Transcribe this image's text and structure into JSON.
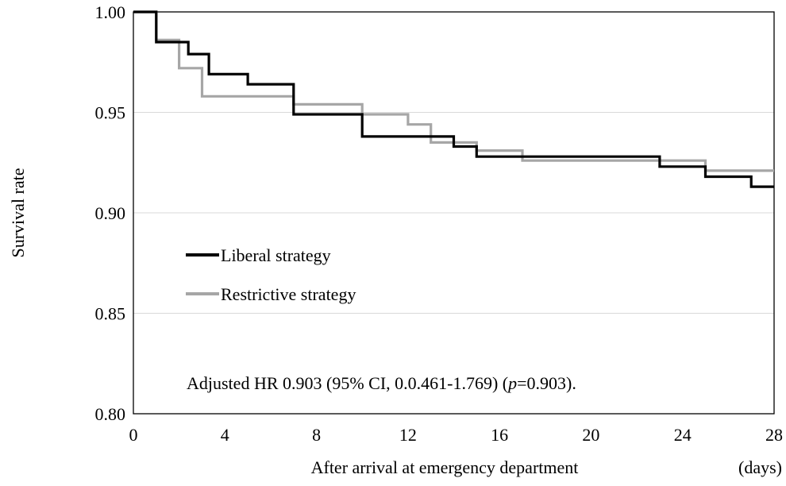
{
  "chart_data": {
    "type": "line",
    "step": true,
    "xlabel": "After arrival at emergency department",
    "xunit": "(days)",
    "ylabel": "Survival rate",
    "xlim": [
      0,
      28
    ],
    "ylim": [
      0.8,
      1.0
    ],
    "x_ticks": [
      0,
      4,
      8,
      12,
      16,
      20,
      24,
      28
    ],
    "y_ticks": [
      0.8,
      0.85,
      0.9,
      0.95,
      1.0
    ],
    "x_tick_labels": [
      "0",
      "4",
      "8",
      "12",
      "16",
      "20",
      "24",
      "28"
    ],
    "y_tick_labels": [
      "0.80",
      "0.85",
      "0.90",
      "0.95",
      "1.00"
    ],
    "grid": "horizontal",
    "legend_position": "middle-left",
    "annotation": {
      "prefix": "Adjusted HR 0.903 (95% CI, 0.0.461-1.769) (",
      "p_symbol": "p",
      "suffix": "=0.903)."
    },
    "series": [
      {
        "name": "Liberal strategy",
        "color": "#000000",
        "points": [
          [
            0,
            1.0
          ],
          [
            1,
            0.985
          ],
          [
            2.4,
            0.979
          ],
          [
            3.3,
            0.969
          ],
          [
            5,
            0.964
          ],
          [
            7,
            0.949
          ],
          [
            10,
            0.938
          ],
          [
            14,
            0.933
          ],
          [
            15,
            0.928
          ],
          [
            23,
            0.923
          ],
          [
            25,
            0.918
          ],
          [
            27,
            0.913
          ],
          [
            28,
            0.913
          ]
        ]
      },
      {
        "name": "Restrictive strategy",
        "color": "#a6a6a6",
        "points": [
          [
            0,
            1.0
          ],
          [
            1,
            0.986
          ],
          [
            2,
            0.972
          ],
          [
            3,
            0.958
          ],
          [
            7,
            0.954
          ],
          [
            10,
            0.949
          ],
          [
            12,
            0.944
          ],
          [
            13,
            0.935
          ],
          [
            15,
            0.931
          ],
          [
            17,
            0.926
          ],
          [
            25,
            0.921
          ],
          [
            28,
            0.921
          ]
        ]
      }
    ]
  }
}
